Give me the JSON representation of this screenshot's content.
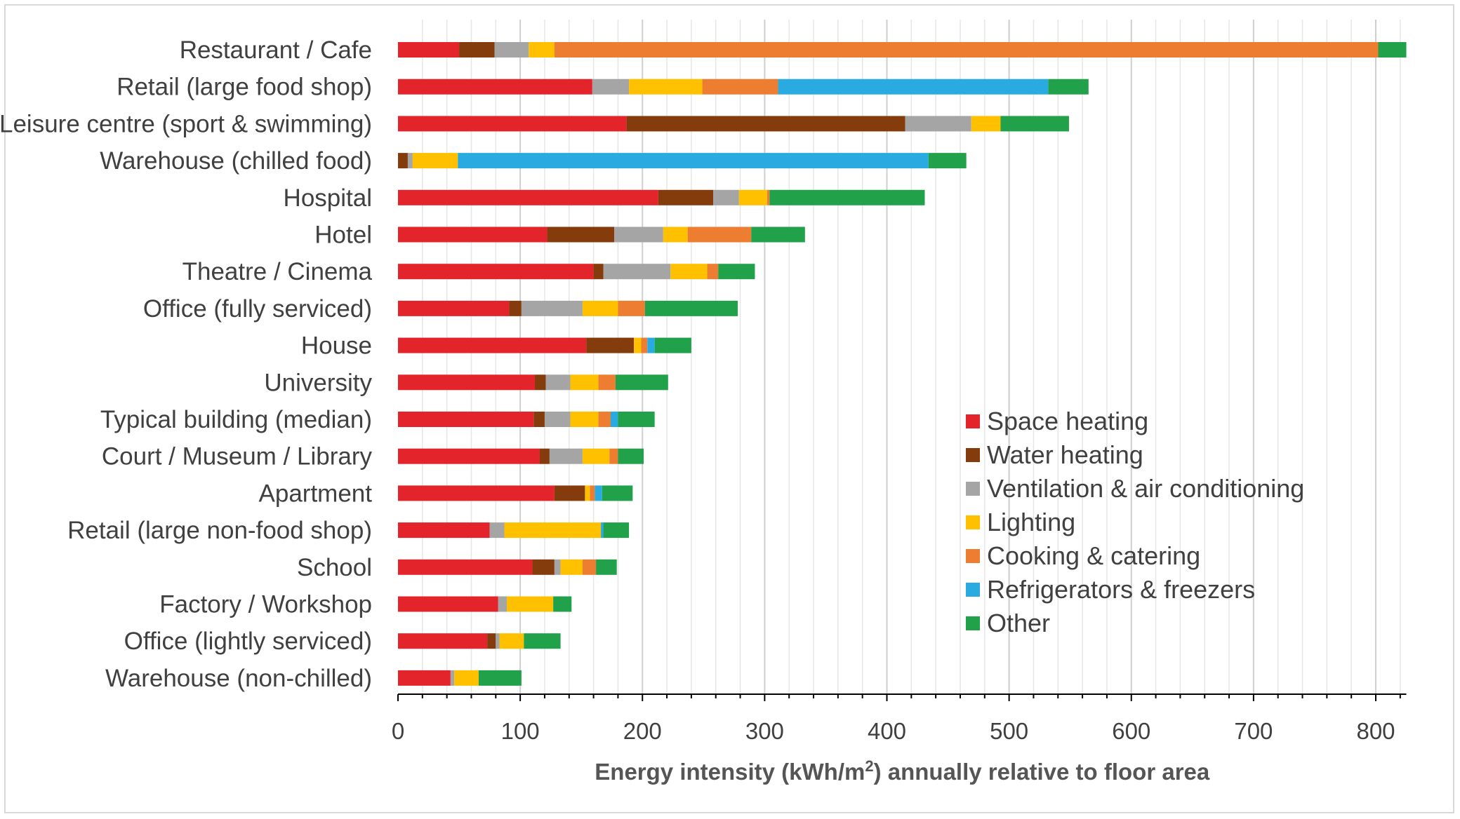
{
  "chart_data": {
    "type": "bar",
    "orientation": "horizontal",
    "stacked": true,
    "categories": [
      "Restaurant / Cafe",
      "Retail (large food shop)",
      "Leisure centre (sport & swimming)",
      "Warehouse (chilled food)",
      "Hospital",
      "Hotel",
      "Theatre / Cinema",
      "Office (fully serviced)",
      "House",
      "University",
      "Typical building (median)",
      "Court / Museum / Library",
      "Apartment",
      "Retail (large non-food shop)",
      "School",
      "Factory / Workshop",
      "Office (lightly serviced)",
      "Warehouse (non-chilled)"
    ],
    "series": [
      {
        "name": "Space heating",
        "color": "#e3242b",
        "values": [
          50,
          159,
          187,
          0,
          213,
          122,
          160,
          91,
          154,
          112,
          111,
          116,
          128,
          75,
          110,
          82,
          73,
          43
        ]
      },
      {
        "name": "Water heating",
        "color": "#843c0c",
        "values": [
          29,
          0,
          228,
          8,
          45,
          55,
          8,
          10,
          39,
          9,
          9,
          8,
          25,
          0,
          18,
          0,
          7,
          0
        ]
      },
      {
        "name": "Ventilation & air conditioning",
        "color": "#a5a5a5",
        "values": [
          28,
          30,
          54,
          4,
          21,
          40,
          55,
          50,
          0,
          20,
          21,
          27,
          0,
          12,
          5,
          7,
          3,
          3
        ]
      },
      {
        "name": "Lighting",
        "color": "#ffc000",
        "values": [
          21,
          60,
          24,
          37,
          23,
          20,
          30,
          29,
          6,
          23,
          23,
          22,
          4,
          79,
          18,
          38,
          20,
          20
        ]
      },
      {
        "name": "Cooking & catering",
        "color": "#ed7d31",
        "values": [
          674,
          62,
          0,
          0,
          2,
          52,
          9,
          22,
          5,
          14,
          10,
          7,
          4,
          0,
          11,
          0,
          0,
          0
        ]
      },
      {
        "name": "Refrigerators & freezers",
        "color": "#29abe2",
        "values": [
          0,
          221,
          0,
          385,
          0,
          0,
          0,
          0,
          6,
          0,
          6,
          0,
          6,
          2,
          0,
          0,
          0,
          0
        ]
      },
      {
        "name": "Other",
        "color": "#21a24a",
        "values": [
          23,
          33,
          56,
          31,
          127,
          44,
          30,
          76,
          30,
          43,
          30,
          21,
          25,
          21,
          17,
          15,
          30,
          35
        ]
      }
    ],
    "xlabel": "Energy intensity (kWh/m",
    "xlabel_sup": "2",
    "xlabel_tail": ") annually relative to floor area",
    "xlim": [
      0,
      825
    ],
    "xticks": [
      0,
      100,
      200,
      300,
      400,
      500,
      600,
      700,
      800
    ],
    "tick_labels": [
      "0",
      "100",
      "200",
      "300",
      "400",
      "500",
      "600",
      "700",
      "800"
    ],
    "minor_tick_step": 20,
    "grid": true,
    "legend": "right"
  }
}
